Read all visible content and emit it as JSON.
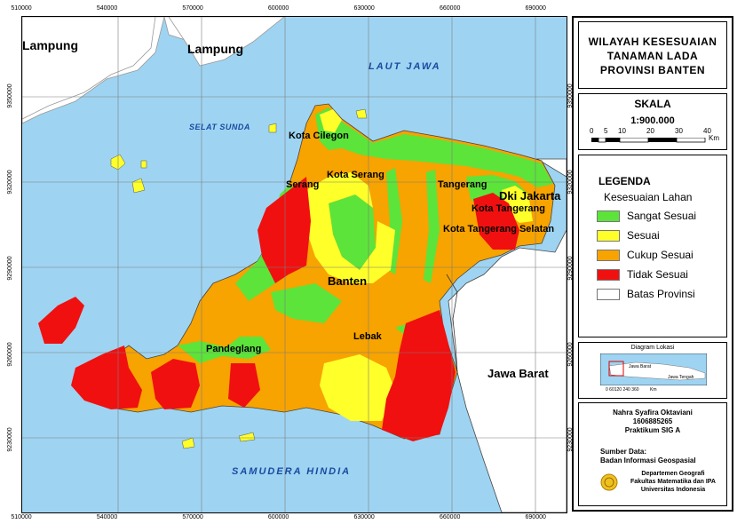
{
  "map": {
    "top_ticks": [
      {
        "label": "510000",
        "value": 510000
      },
      {
        "label": "540000",
        "value": 540000
      },
      {
        "label": "570000",
        "value": 570000
      },
      {
        "label": "600000",
        "value": 600000
      },
      {
        "label": "630000",
        "value": 630000
      },
      {
        "label": "660000",
        "value": 660000
      },
      {
        "label": "690000",
        "value": 690000
      }
    ],
    "bottom_ticks": [
      {
        "label": "510000",
        "value": 510000
      },
      {
        "label": "540000",
        "value": 540000
      },
      {
        "label": "570000",
        "value": 570000
      },
      {
        "label": "600000",
        "value": 600000
      },
      {
        "label": "630000",
        "value": 630000
      },
      {
        "label": "660000",
        "value": 660000
      },
      {
        "label": "690000",
        "value": 690000
      }
    ],
    "left_ticks": [
      {
        "label": "9350000",
        "value": 9350000
      },
      {
        "label": "9320000",
        "value": 9320000
      },
      {
        "label": "9290000",
        "value": 9290000
      },
      {
        "label": "9260000",
        "value": 9260000
      },
      {
        "label": "9230000",
        "value": 9230000
      }
    ],
    "right_ticks": [
      {
        "label": "9350000",
        "value": 9350000
      },
      {
        "label": "9320000",
        "value": 9320000
      },
      {
        "label": "9290000",
        "value": 9290000
      },
      {
        "label": "9260000",
        "value": 9260000
      },
      {
        "label": "9230000",
        "value": 9230000
      }
    ],
    "places": {
      "lampung_left": "Lampung",
      "lampung_center": "Lampung",
      "laut_jawa": "LAUT JAWA",
      "selat_sunda": "SELAT SUNDA",
      "kota_cilegon": "Kota Cilegon",
      "kota_serang": "Kota Serang",
      "serang": "Serang",
      "tangerang": "Tangerang",
      "dki_jakarta": "Dki Jakarta",
      "kota_tangerang": "Kota Tangerang",
      "kota_tangerang_selatan": "Kota Tangerang Selatan",
      "banten": "Banten",
      "lebak": "Lebak",
      "pandeglang": "Pandeglang",
      "jawa_barat": "Jawa Barat",
      "samudera_hindia": "SAMUDERA HINDIA"
    }
  },
  "title": {
    "line1": "WILAYAH KESESUAIAN",
    "line2": "TANAMAN LADA",
    "line3": "PROVINSI BANTEN"
  },
  "scale": {
    "heading": "SKALA",
    "ratio": "1:900.000",
    "ticks": [
      "0",
      "5",
      "10",
      "20",
      "30",
      "40"
    ],
    "unit": "Km"
  },
  "legend": {
    "heading": "LEGENDA",
    "subheading": "Kesesuaian Lahan",
    "items": [
      {
        "label": "Sangat Sesuai",
        "color": "#5ce43a"
      },
      {
        "label": "Sesuai",
        "color": "#ffff2a"
      },
      {
        "label": "Cukup Sesuai",
        "color": "#f7a300"
      },
      {
        "label": "Tidak Sesuai",
        "color": "#f01010"
      },
      {
        "label": "Batas Provinsi",
        "color": "#ffffff"
      }
    ]
  },
  "location": {
    "heading": "Diagram Lokasi",
    "label_jawa_barat": "Jawa Barat",
    "label_jawa_tengah": "Jawa Tengah",
    "scale_ticks": "0 60120   240   360",
    "unit": "Km"
  },
  "credits": {
    "name": "Nahra Syafira Oktaviani",
    "npm": "1606885265",
    "class": "Praktikum SIG A",
    "source_heading": "Sumber Data:",
    "source": "Badan Informasi Geospasial",
    "dept1": "Departemen Geografi",
    "dept2": "Fakultas Matematika dan IPA",
    "dept3": "Universitas Indonesia"
  },
  "colors": {
    "sea": "#9ed4f2",
    "land_outside": "#ffffff",
    "sangat_sesuai": "#5ce43a",
    "sesuai": "#ffff2a",
    "cukup_sesuai": "#f7a300",
    "tidak_sesuai": "#f01010"
  }
}
